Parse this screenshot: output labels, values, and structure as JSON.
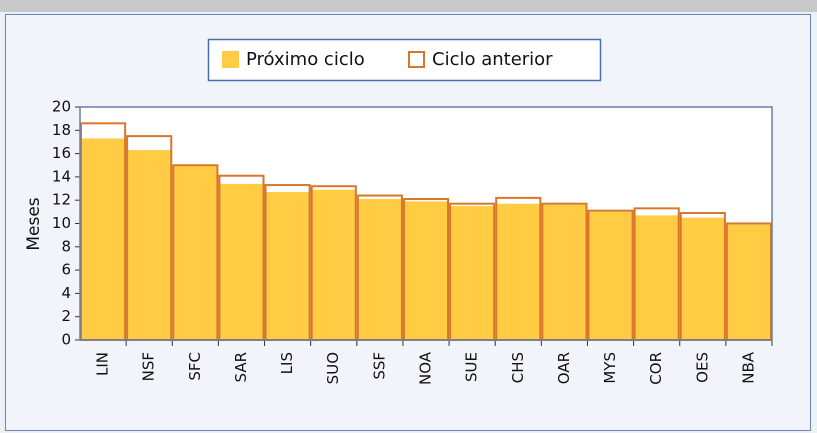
{
  "chart_data": {
    "type": "bar",
    "y_label": "Meses",
    "categories": [
      "LIN",
      "NSF",
      "SFC",
      "SAR",
      "LIS",
      "SUO",
      "SSF",
      "NOA",
      "SUE",
      "CHS",
      "OAR",
      "MYS",
      "COR",
      "OES",
      "NBA"
    ],
    "series": [
      {
        "name": "Próximo ciclo",
        "color": "#ffcc44",
        "style": "filled",
        "values": [
          17.3,
          16.3,
          15.0,
          13.4,
          12.7,
          12.9,
          12.1,
          11.9,
          11.5,
          11.7,
          11.6,
          11.0,
          10.7,
          10.5,
          9.9
        ]
      },
      {
        "name": "Ciclo anterior",
        "color": "#d9762a",
        "style": "outline",
        "values": [
          18.6,
          17.5,
          15.0,
          14.1,
          13.3,
          13.2,
          12.4,
          12.1,
          11.7,
          12.2,
          11.7,
          11.1,
          11.3,
          10.9,
          10.0
        ]
      }
    ],
    "ylim": [
      0,
      20
    ],
    "yticks": [
      0,
      2,
      4,
      6,
      8,
      10,
      12,
      14,
      16,
      18,
      20
    ],
    "grid": false
  }
}
